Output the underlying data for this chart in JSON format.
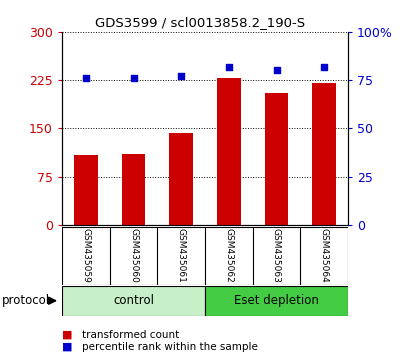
{
  "title": "GDS3599 / scl0013858.2_190-S",
  "samples": [
    "GSM435059",
    "GSM435060",
    "GSM435061",
    "GSM435062",
    "GSM435063",
    "GSM435064"
  ],
  "bar_values": [
    108,
    110,
    143,
    228,
    205,
    220
  ],
  "scatter_values": [
    76,
    76,
    77,
    82,
    80,
    82
  ],
  "bar_color": "#cc0000",
  "scatter_color": "#0000cc",
  "ylim_left": [
    0,
    300
  ],
  "ylim_right": [
    0,
    100
  ],
  "yticks_left": [
    0,
    75,
    150,
    225,
    300
  ],
  "yticks_right": [
    0,
    25,
    50,
    75,
    100
  ],
  "ytick_labels_left": [
    "0",
    "75",
    "150",
    "225",
    "300"
  ],
  "ytick_labels_right": [
    "0",
    "25",
    "50",
    "75",
    "100%"
  ],
  "groups": [
    {
      "label": "control",
      "indices": [
        0,
        1,
        2
      ],
      "color": "#c8f0c8"
    },
    {
      "label": "Eset depletion",
      "indices": [
        3,
        4,
        5
      ],
      "color": "#44cc44"
    }
  ],
  "protocol_label": "protocol",
  "legend_bar_label": "transformed count",
  "legend_scatter_label": "percentile rank within the sample",
  "gridline_color": "#000000",
  "background_color": "#ffffff",
  "tick_area_color": "#d0d0d0",
  "bar_width": 0.5
}
